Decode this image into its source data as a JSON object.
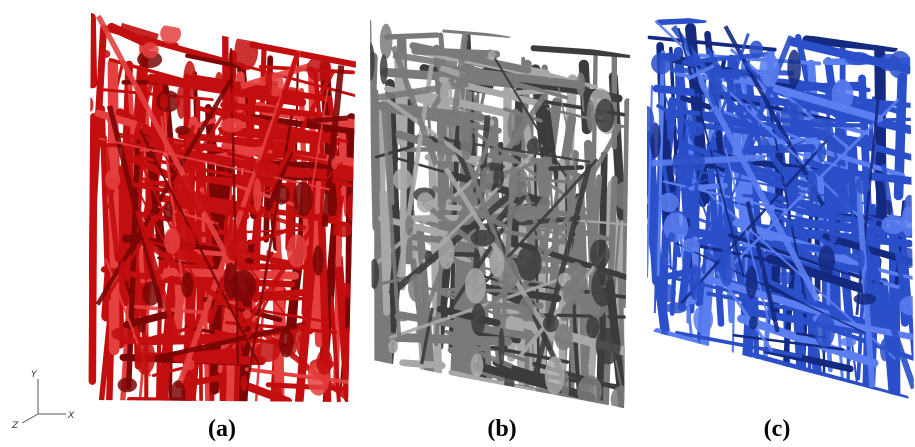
{
  "panels": [
    {
      "id": "a",
      "caption": "(a)",
      "color": "#c20e0e",
      "shade": "#7a0606",
      "hi": "#e54040"
    },
    {
      "id": "b",
      "caption": "(b)",
      "color": "#7a7a7a",
      "shade": "#3c3c3c",
      "hi": "#a8a8a8"
    },
    {
      "id": "c",
      "caption": "(c)",
      "color": "#2a4fc8",
      "shade": "#142a80",
      "hi": "#5b7ef0"
    }
  ],
  "axes": {
    "y_label": "Y",
    "x_label": "X",
    "z_label": "Z"
  }
}
